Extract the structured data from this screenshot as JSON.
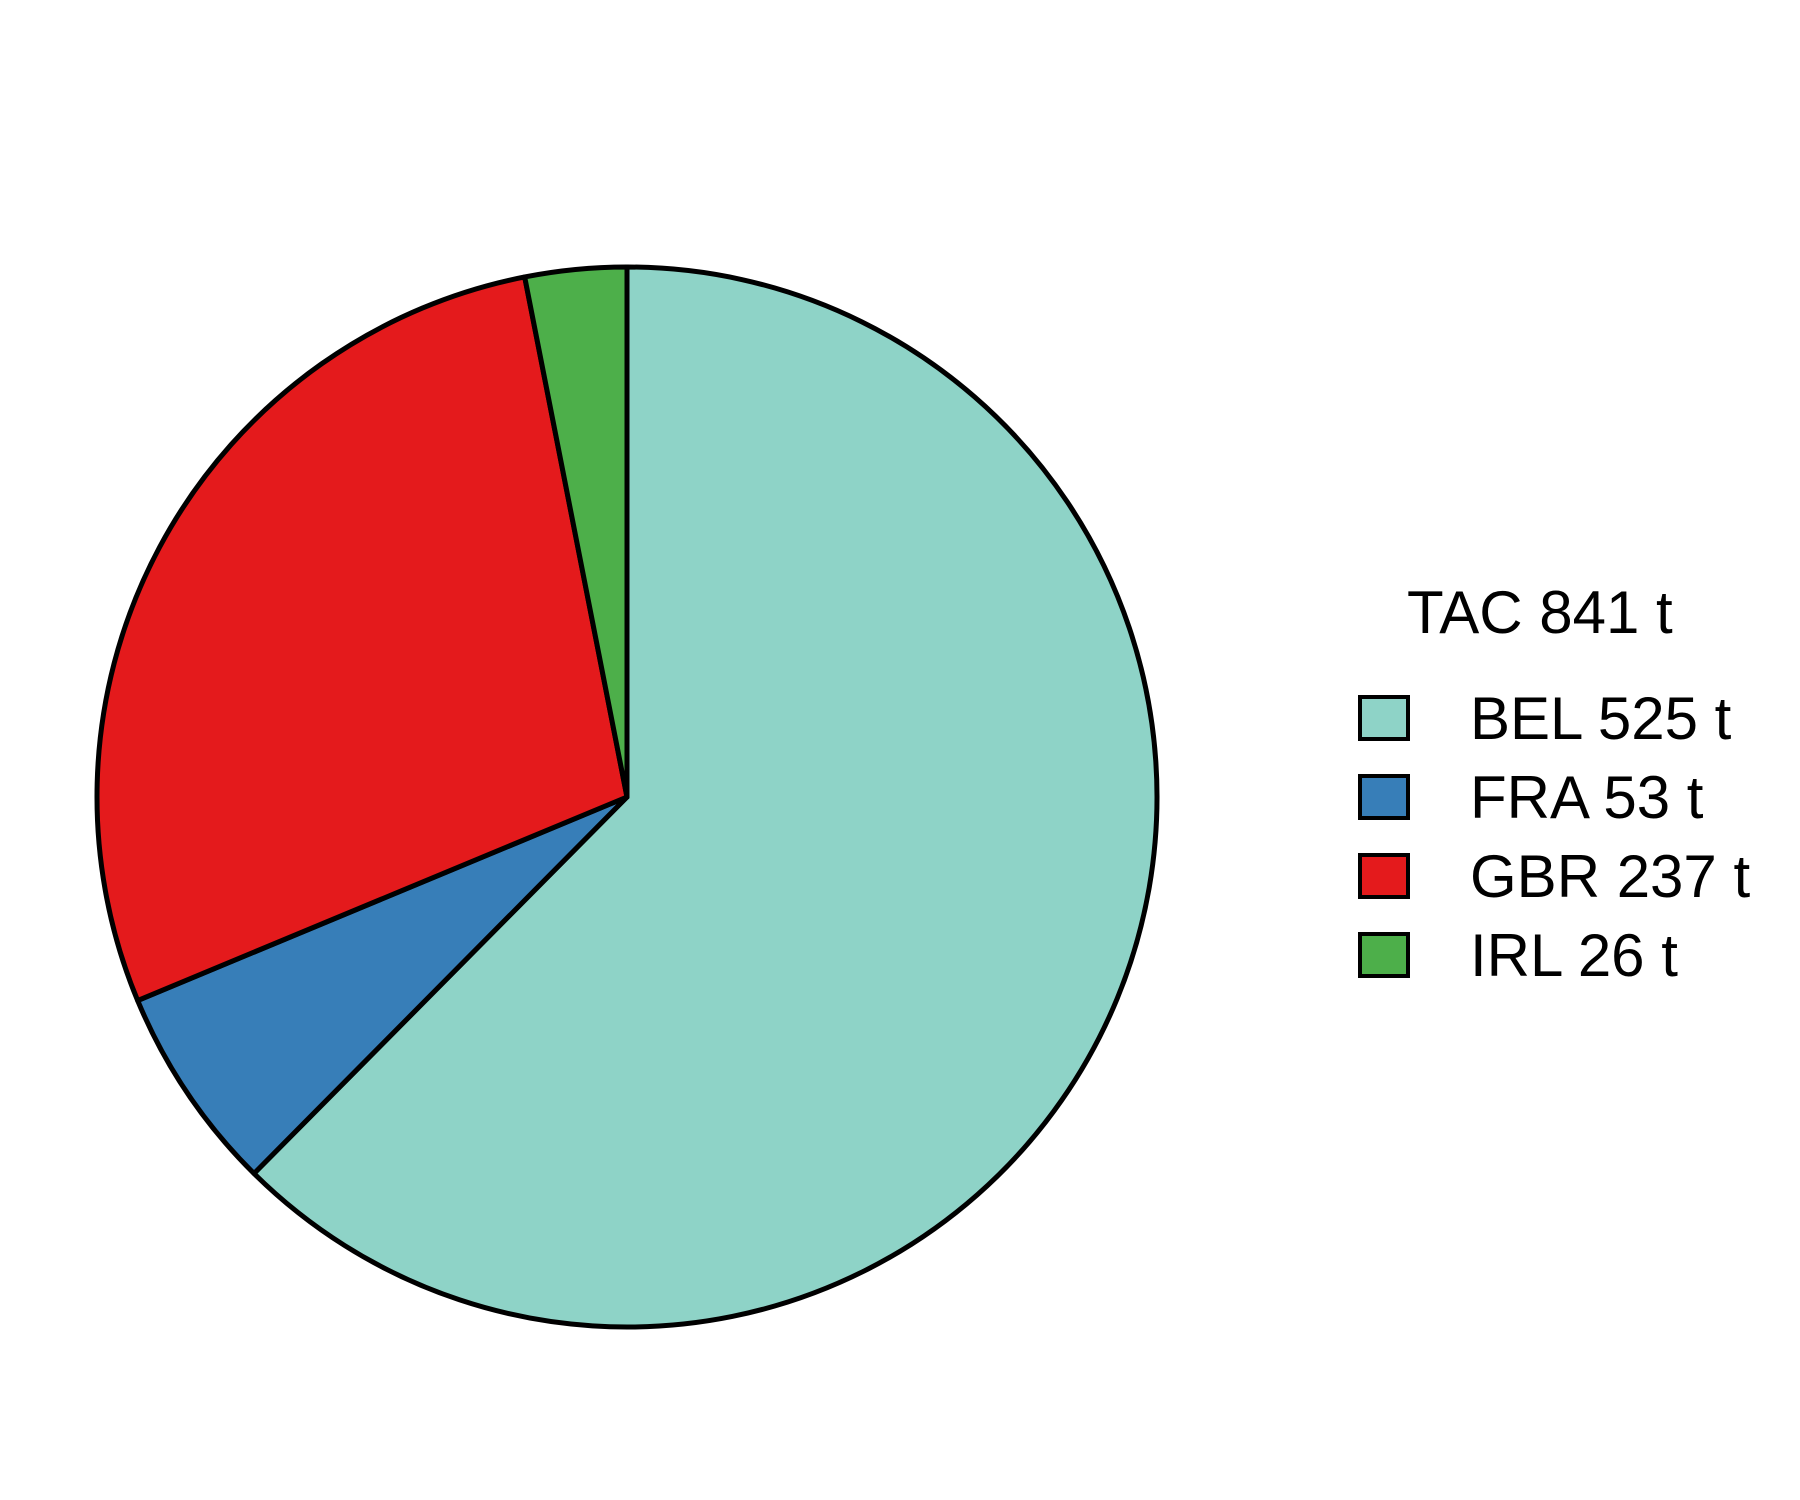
{
  "chart_data": {
    "type": "pie",
    "direction": "clockwise",
    "start": "12 o'clock",
    "legend_title": "TAC 841 t",
    "legend_placement": "right",
    "slices": [
      {
        "label": "BEL 525 t",
        "category": "BEL",
        "value": 525,
        "color": "#8ED3C7"
      },
      {
        "label": "FRA 53 t",
        "category": "FRA",
        "value": 53,
        "color": "#377EB8"
      },
      {
        "label": "GBR 237 t",
        "category": "GBR",
        "value": 237,
        "color": "#E41A1C"
      },
      {
        "label": "IRL 26 t",
        "category": "IRL",
        "value": 26,
        "color": "#4DAF4A"
      }
    ]
  }
}
